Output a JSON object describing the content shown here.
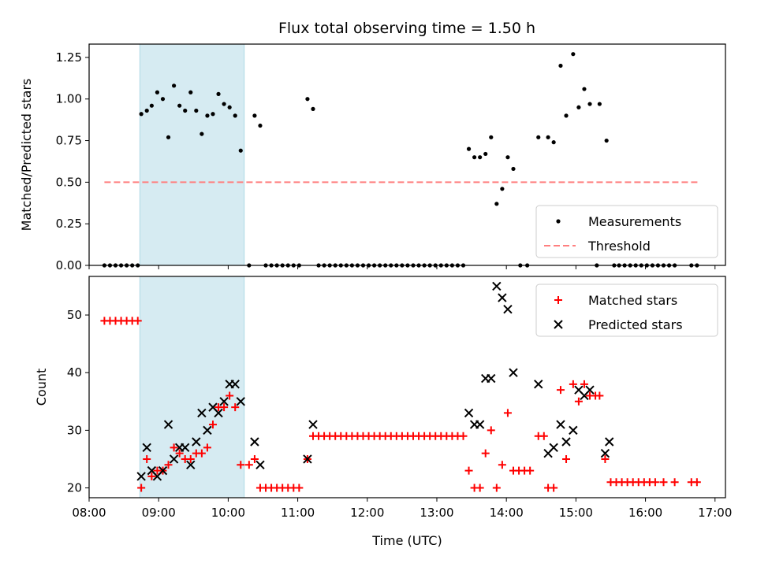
{
  "title": "Flux total observing time = 1.50 h",
  "colors": {
    "shade": "#add8e6",
    "matched": "#ff0000",
    "predicted": "#000000",
    "threshold": "#ff7f7f"
  },
  "chart_data": [
    {
      "type": "scatter",
      "ylabel": "Matched/Predicted stars",
      "xlim": [
        8.0,
        17.15
      ],
      "ylim": [
        0,
        1.33
      ],
      "yticks": [
        "0.00",
        "0.25",
        "0.50",
        "0.75",
        "1.00",
        "1.25"
      ],
      "shaded_interval": [
        8.73,
        10.23
      ],
      "threshold": {
        "value": 0.5,
        "x_from": 8.22,
        "x_to": 16.75
      },
      "legend": {
        "position": "lower-right",
        "entries": [
          "Measurements",
          "Threshold"
        ]
      },
      "series": [
        {
          "name": "Measurements",
          "marker": "dot",
          "points": [
            [
              8.22,
              0
            ],
            [
              8.3,
              0
            ],
            [
              8.38,
              0
            ],
            [
              8.46,
              0
            ],
            [
              8.54,
              0
            ],
            [
              8.62,
              0
            ],
            [
              8.7,
              0
            ],
            [
              8.75,
              0.91
            ],
            [
              8.83,
              0.93
            ],
            [
              8.9,
              0.96
            ],
            [
              8.98,
              1.04
            ],
            [
              9.06,
              1.0
            ],
            [
              9.14,
              0.77
            ],
            [
              9.22,
              1.08
            ],
            [
              9.3,
              0.96
            ],
            [
              9.38,
              0.93
            ],
            [
              9.46,
              1.04
            ],
            [
              9.54,
              0.93
            ],
            [
              9.62,
              0.79
            ],
            [
              9.7,
              0.9
            ],
            [
              9.78,
              0.91
            ],
            [
              9.86,
              1.03
            ],
            [
              9.94,
              0.97
            ],
            [
              10.02,
              0.95
            ],
            [
              10.1,
              0.9
            ],
            [
              10.18,
              0.69
            ],
            [
              10.3,
              0
            ],
            [
              10.38,
              0.9
            ],
            [
              10.46,
              0.84
            ],
            [
              10.54,
              0
            ],
            [
              10.62,
              0
            ],
            [
              10.7,
              0
            ],
            [
              10.78,
              0
            ],
            [
              10.86,
              0
            ],
            [
              10.94,
              0
            ],
            [
              11.02,
              0
            ],
            [
              11.14,
              1.0
            ],
            [
              11.22,
              0.94
            ],
            [
              11.3,
              0
            ],
            [
              11.38,
              0
            ],
            [
              11.46,
              0
            ],
            [
              11.54,
              0
            ],
            [
              11.62,
              0
            ],
            [
              11.7,
              0
            ],
            [
              11.78,
              0
            ],
            [
              11.86,
              0
            ],
            [
              11.94,
              0
            ],
            [
              12.02,
              0
            ],
            [
              12.1,
              0
            ],
            [
              12.18,
              0
            ],
            [
              12.26,
              0
            ],
            [
              12.34,
              0
            ],
            [
              12.42,
              0
            ],
            [
              12.5,
              0
            ],
            [
              12.58,
              0
            ],
            [
              12.66,
              0
            ],
            [
              12.74,
              0
            ],
            [
              12.82,
              0
            ],
            [
              12.9,
              0
            ],
            [
              12.98,
              0
            ],
            [
              13.06,
              0
            ],
            [
              13.14,
              0
            ],
            [
              13.22,
              0
            ],
            [
              13.3,
              0
            ],
            [
              13.38,
              0
            ],
            [
              13.46,
              0.7
            ],
            [
              13.54,
              0.65
            ],
            [
              13.62,
              0.65
            ],
            [
              13.7,
              0.67
            ],
            [
              13.78,
              0.77
            ],
            [
              13.86,
              0.37
            ],
            [
              13.94,
              0.46
            ],
            [
              14.02,
              0.65
            ],
            [
              14.1,
              0.58
            ],
            [
              14.2,
              0
            ],
            [
              14.3,
              0
            ],
            [
              14.46,
              0.77
            ],
            [
              14.6,
              0.77
            ],
            [
              14.68,
              0.74
            ],
            [
              14.78,
              1.2
            ],
            [
              14.86,
              0.9
            ],
            [
              14.96,
              1.27
            ],
            [
              15.04,
              0.95
            ],
            [
              15.12,
              1.06
            ],
            [
              15.2,
              0.97
            ],
            [
              15.34,
              0.97
            ],
            [
              15.44,
              0.75
            ],
            [
              15.3,
              0
            ],
            [
              15.55,
              0
            ],
            [
              15.62,
              0
            ],
            [
              15.7,
              0
            ],
            [
              15.78,
              0
            ],
            [
              15.86,
              0
            ],
            [
              15.94,
              0
            ],
            [
              16.02,
              0
            ],
            [
              16.1,
              0
            ],
            [
              16.18,
              0
            ],
            [
              16.26,
              0
            ],
            [
              16.34,
              0
            ],
            [
              16.42,
              0
            ],
            [
              16.66,
              0
            ],
            [
              16.74,
              0
            ]
          ]
        }
      ]
    },
    {
      "type": "scatter",
      "xlabel": "Time (UTC)",
      "ylabel": "Count",
      "xlim": [
        8.0,
        17.15
      ],
      "ylim": [
        18.3,
        56.7
      ],
      "xticks": [
        "08:00",
        "09:00",
        "10:00",
        "11:00",
        "12:00",
        "13:00",
        "14:00",
        "15:00",
        "16:00",
        "17:00"
      ],
      "yticks": [
        "20",
        "30",
        "40",
        "50"
      ],
      "shaded_interval": [
        8.73,
        10.23
      ],
      "legend": {
        "position": "top-right",
        "entries": [
          "Matched stars",
          "Predicted stars"
        ]
      },
      "series": [
        {
          "name": "Matched stars",
          "marker": "plus",
          "points": [
            [
              8.22,
              49
            ],
            [
              8.3,
              49
            ],
            [
              8.38,
              49
            ],
            [
              8.46,
              49
            ],
            [
              8.54,
              49
            ],
            [
              8.62,
              49
            ],
            [
              8.7,
              49
            ],
            [
              8.75,
              20
            ],
            [
              8.83,
              25
            ],
            [
              8.9,
              22
            ],
            [
              8.98,
              23
            ],
            [
              9.06,
              23
            ],
            [
              9.14,
              24
            ],
            [
              9.22,
              27
            ],
            [
              9.3,
              26
            ],
            [
              9.38,
              25
            ],
            [
              9.46,
              25
            ],
            [
              9.54,
              26
            ],
            [
              9.62,
              26
            ],
            [
              9.7,
              27
            ],
            [
              9.78,
              31
            ],
            [
              9.86,
              34
            ],
            [
              9.94,
              34
            ],
            [
              10.02,
              36
            ],
            [
              10.1,
              34
            ],
            [
              10.18,
              24
            ],
            [
              10.3,
              24
            ],
            [
              10.38,
              25
            ],
            [
              10.46,
              20
            ],
            [
              10.54,
              20
            ],
            [
              10.62,
              20
            ],
            [
              10.7,
              20
            ],
            [
              10.78,
              20
            ],
            [
              10.86,
              20
            ],
            [
              10.94,
              20
            ],
            [
              11.02,
              20
            ],
            [
              11.14,
              25
            ],
            [
              11.22,
              29
            ],
            [
              11.3,
              29
            ],
            [
              11.38,
              29
            ],
            [
              11.46,
              29
            ],
            [
              11.54,
              29
            ],
            [
              11.62,
              29
            ],
            [
              11.7,
              29
            ],
            [
              11.78,
              29
            ],
            [
              11.86,
              29
            ],
            [
              11.94,
              29
            ],
            [
              12.02,
              29
            ],
            [
              12.1,
              29
            ],
            [
              12.18,
              29
            ],
            [
              12.26,
              29
            ],
            [
              12.34,
              29
            ],
            [
              12.42,
              29
            ],
            [
              12.5,
              29
            ],
            [
              12.58,
              29
            ],
            [
              12.66,
              29
            ],
            [
              12.74,
              29
            ],
            [
              12.82,
              29
            ],
            [
              12.9,
              29
            ],
            [
              12.98,
              29
            ],
            [
              13.06,
              29
            ],
            [
              13.14,
              29
            ],
            [
              13.22,
              29
            ],
            [
              13.3,
              29
            ],
            [
              13.38,
              29
            ],
            [
              13.46,
              23
            ],
            [
              13.54,
              20
            ],
            [
              13.62,
              20
            ],
            [
              13.7,
              26
            ],
            [
              13.78,
              30
            ],
            [
              13.86,
              20
            ],
            [
              13.94,
              24
            ],
            [
              14.02,
              33
            ],
            [
              14.1,
              23
            ],
            [
              14.18,
              23
            ],
            [
              14.26,
              23
            ],
            [
              14.34,
              23
            ],
            [
              14.46,
              29
            ],
            [
              14.54,
              29
            ],
            [
              14.6,
              20
            ],
            [
              14.68,
              20
            ],
            [
              14.78,
              37
            ],
            [
              14.86,
              25
            ],
            [
              14.96,
              38
            ],
            [
              15.04,
              35
            ],
            [
              15.12,
              38
            ],
            [
              15.2,
              36
            ],
            [
              15.28,
              36
            ],
            [
              15.34,
              36
            ],
            [
              15.42,
              25
            ],
            [
              15.5,
              21
            ],
            [
              15.58,
              21
            ],
            [
              15.66,
              21
            ],
            [
              15.74,
              21
            ],
            [
              15.82,
              21
            ],
            [
              15.9,
              21
            ],
            [
              15.98,
              21
            ],
            [
              16.06,
              21
            ],
            [
              16.14,
              21
            ],
            [
              16.26,
              21
            ],
            [
              16.42,
              21
            ],
            [
              16.66,
              21
            ],
            [
              16.74,
              21
            ]
          ]
        },
        {
          "name": "Predicted stars",
          "marker": "x",
          "points": [
            [
              8.75,
              22
            ],
            [
              8.83,
              27
            ],
            [
              8.9,
              23
            ],
            [
              8.98,
              22
            ],
            [
              9.06,
              23
            ],
            [
              9.14,
              31
            ],
            [
              9.22,
              25
            ],
            [
              9.3,
              27
            ],
            [
              9.38,
              27
            ],
            [
              9.46,
              24
            ],
            [
              9.54,
              28
            ],
            [
              9.62,
              33
            ],
            [
              9.7,
              30
            ],
            [
              9.78,
              34
            ],
            [
              9.86,
              33
            ],
            [
              9.94,
              35
            ],
            [
              10.02,
              38
            ],
            [
              10.1,
              38
            ],
            [
              10.18,
              35
            ],
            [
              10.38,
              28
            ],
            [
              10.46,
              24
            ],
            [
              11.14,
              25
            ],
            [
              11.22,
              31
            ],
            [
              13.46,
              33
            ],
            [
              13.54,
              31
            ],
            [
              13.62,
              31
            ],
            [
              13.7,
              39
            ],
            [
              13.78,
              39
            ],
            [
              13.86,
              55
            ],
            [
              13.94,
              53
            ],
            [
              14.02,
              51
            ],
            [
              14.1,
              40
            ],
            [
              14.46,
              38
            ],
            [
              14.6,
              26
            ],
            [
              14.68,
              27
            ],
            [
              14.78,
              31
            ],
            [
              14.86,
              28
            ],
            [
              14.96,
              30
            ],
            [
              15.04,
              37
            ],
            [
              15.12,
              36
            ],
            [
              15.2,
              37
            ],
            [
              15.42,
              26
            ],
            [
              15.48,
              28
            ]
          ]
        }
      ]
    }
  ]
}
